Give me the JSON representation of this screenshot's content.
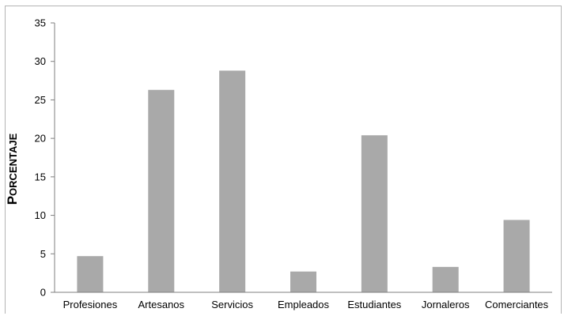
{
  "chart_data": {
    "type": "bar",
    "title": "",
    "xlabel": "",
    "ylabel": "Porcentaje",
    "categories": [
      "Profesiones",
      "Artesanos",
      "Servicios",
      "Empleados",
      "Estudiantes",
      "Jornaleros",
      "Comerciantes"
    ],
    "values": [
      4.7,
      26.3,
      28.8,
      2.7,
      20.4,
      3.3,
      9.4
    ],
    "ylim": [
      0,
      35
    ],
    "yticks": [
      0,
      5,
      10,
      15,
      20,
      25,
      30,
      35
    ],
    "grid": false,
    "legend": "none",
    "bar_color": "#a9a9a9",
    "axis_color": "#7f7f7f"
  }
}
